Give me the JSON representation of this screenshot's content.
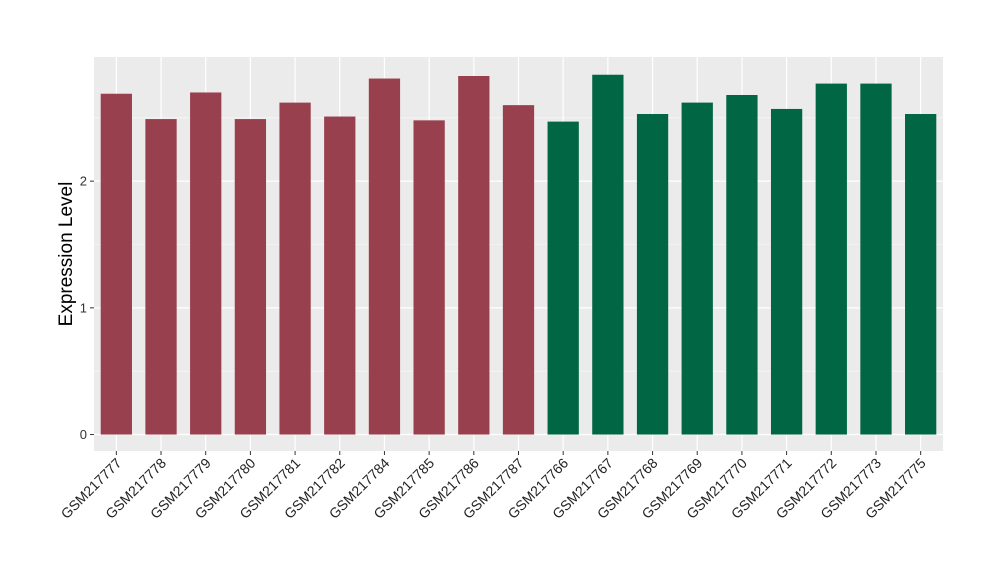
{
  "chart_data": {
    "type": "bar",
    "title": "",
    "xlabel": "",
    "ylabel": "Expression Level",
    "ylim": [
      -0.13,
      2.98
    ],
    "yticks": [
      0,
      1,
      2
    ],
    "grid": true,
    "legend": "none",
    "background_color": "#EBEBEB",
    "categories": [
      "GSM217777",
      "GSM217778",
      "GSM217779",
      "GSM217780",
      "GSM217781",
      "GSM217782",
      "GSM217784",
      "GSM217785",
      "GSM217786",
      "GSM217787",
      "GSM217766",
      "GSM217767",
      "GSM217768",
      "GSM217769",
      "GSM217770",
      "GSM217771",
      "GSM217772",
      "GSM217773",
      "GSM217775"
    ],
    "values": [
      2.69,
      2.49,
      2.7,
      2.49,
      2.62,
      2.51,
      2.81,
      2.48,
      2.83,
      2.6,
      2.47,
      2.84,
      2.53,
      2.62,
      2.68,
      2.57,
      2.77,
      2.77,
      2.53
    ],
    "colors": [
      "#99404F",
      "#99404F",
      "#99404F",
      "#99404F",
      "#99404F",
      "#99404F",
      "#99404F",
      "#99404F",
      "#99404F",
      "#99404F",
      "#006644",
      "#006644",
      "#006644",
      "#006644",
      "#006644",
      "#006644",
      "#006644",
      "#006644",
      "#006644"
    ]
  }
}
